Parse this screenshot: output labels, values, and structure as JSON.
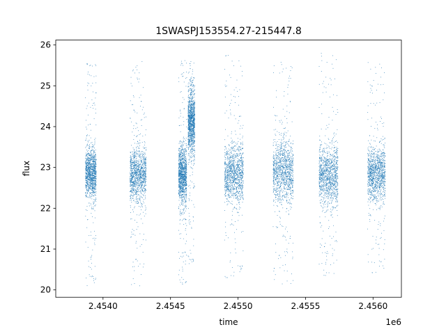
{
  "chart_data": {
    "type": "scatter",
    "title": "1SWASPJ153554.27-215447.8",
    "xlabel": "time",
    "ylabel": "flux",
    "x_offset_label": "1e6",
    "x_ticks": [
      2.454,
      2.4545,
      2.455,
      2.4555,
      2.456
    ],
    "x_tick_labels": [
      "2.4540",
      "2.4545",
      "2.4550",
      "2.4555",
      "2.4560"
    ],
    "y_ticks": [
      20,
      21,
      22,
      23,
      24,
      25,
      26
    ],
    "y_tick_labels": [
      "20",
      "21",
      "22",
      "23",
      "24",
      "25",
      "26"
    ],
    "xlim": [
      2.45365,
      2.45621
    ],
    "ylim": [
      19.82,
      26.12
    ],
    "grid": false,
    "legend": "none",
    "marker_color": "#1f77b4",
    "segments": [
      {
        "x_start": 2.45387,
        "x_end": 2.45395,
        "center": 22.85,
        "spread": 0.3,
        "outlier_low": 20.1,
        "outlier_high": 25.6
      },
      {
        "x_start": 2.4542,
        "x_end": 2.45432,
        "center": 22.8,
        "spread": 0.32,
        "outlier_low": 20.1,
        "outlier_high": 25.6
      },
      {
        "x_start": 2.45456,
        "x_end": 2.45462,
        "center": 22.8,
        "spread": 0.35,
        "outlier_low": 20.1,
        "outlier_high": 25.7
      },
      {
        "x_start": 2.45463,
        "x_end": 2.45468,
        "center": 24.1,
        "spread": 0.4,
        "outlier_low": 20.6,
        "outlier_high": 25.6
      },
      {
        "x_start": 2.4549,
        "x_end": 2.45504,
        "center": 22.85,
        "spread": 0.35,
        "outlier_low": 20.3,
        "outlier_high": 25.8
      },
      {
        "x_start": 2.45526,
        "x_end": 2.45541,
        "center": 22.9,
        "spread": 0.38,
        "outlier_low": 20.1,
        "outlier_high": 25.6
      },
      {
        "x_start": 2.4556,
        "x_end": 2.45574,
        "center": 22.8,
        "spread": 0.35,
        "outlier_low": 20.3,
        "outlier_high": 25.8
      },
      {
        "x_start": 2.45596,
        "x_end": 2.45609,
        "center": 22.85,
        "spread": 0.32,
        "outlier_low": 20.4,
        "outlier_high": 25.6
      }
    ]
  }
}
